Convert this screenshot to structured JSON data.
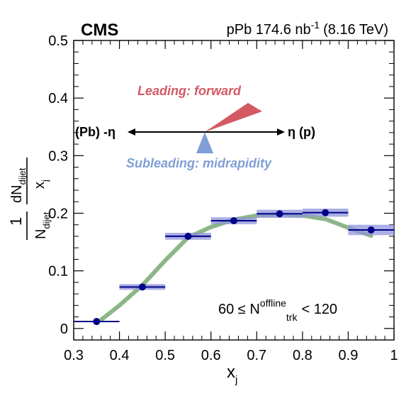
{
  "chart_data": {
    "type": "scatter",
    "experiment": "CMS",
    "header_prefix": "pPb 174.6 nb",
    "header_exponent": "-1",
    "header_suffix": "(8.16 TeV)",
    "xlabel": "x",
    "xlabel_subscript": "j",
    "ylabel": {
      "fraction_numerator": "1",
      "fraction_denominator_main": "N",
      "fraction_denominator_sub": "dijet",
      "derivative_numerator_main": "dN",
      "derivative_numerator_sub": "dijet",
      "derivative_denominator_main": "x",
      "derivative_denominator_sub": "j"
    },
    "xlim": [
      0.3,
      1.0
    ],
    "ylim": [
      -0.02,
      0.5
    ],
    "xticks": [
      "0.3",
      "0.4",
      "0.5",
      "0.6",
      "0.7",
      "0.8",
      "0.9",
      "1"
    ],
    "yticks": [
      "0",
      "0.1",
      "0.2",
      "0.3",
      "0.4",
      "0.5"
    ],
    "selection_prefix": "60 ≤ N",
    "selection_superscript": "offline",
    "selection_subscript": "trk",
    "selection_suffix": "< 120",
    "annotations": {
      "leading": "Leading: forward",
      "subleading": "Subleading: midrapidity",
      "left_label": "(Pb) -η",
      "right_label": "η (p)"
    },
    "series": [
      {
        "kind": "data",
        "bins": [
          [
            0.3,
            0.4
          ],
          [
            0.4,
            0.5
          ],
          [
            0.5,
            0.6
          ],
          [
            0.6,
            0.7
          ],
          [
            0.7,
            0.8
          ],
          [
            0.8,
            0.9
          ],
          [
            0.9,
            1.0
          ]
        ],
        "x": [
          0.35,
          0.45,
          0.55,
          0.65,
          0.75,
          0.85,
          0.95
        ],
        "y": [
          0.012,
          0.072,
          0.16,
          0.187,
          0.199,
          0.201,
          0.171
        ],
        "syst": [
          0.0,
          0.005,
          0.006,
          0.006,
          0.007,
          0.007,
          0.009
        ]
      },
      {
        "kind": "band",
        "x": [
          0.36,
          0.4,
          0.45,
          0.5,
          0.55,
          0.6,
          0.65,
          0.7,
          0.75,
          0.8,
          0.85,
          0.9,
          0.95
        ],
        "y": [
          0.015,
          0.04,
          0.075,
          0.118,
          0.158,
          0.176,
          0.189,
          0.196,
          0.198,
          0.196,
          0.19,
          0.175,
          0.161
        ]
      }
    ],
    "colors": {
      "marker": "#00008b",
      "syst_box": "#8f94d9",
      "band": "#7fae7a",
      "leading": "#d35a63",
      "subleading": "#7f9fd6"
    }
  }
}
